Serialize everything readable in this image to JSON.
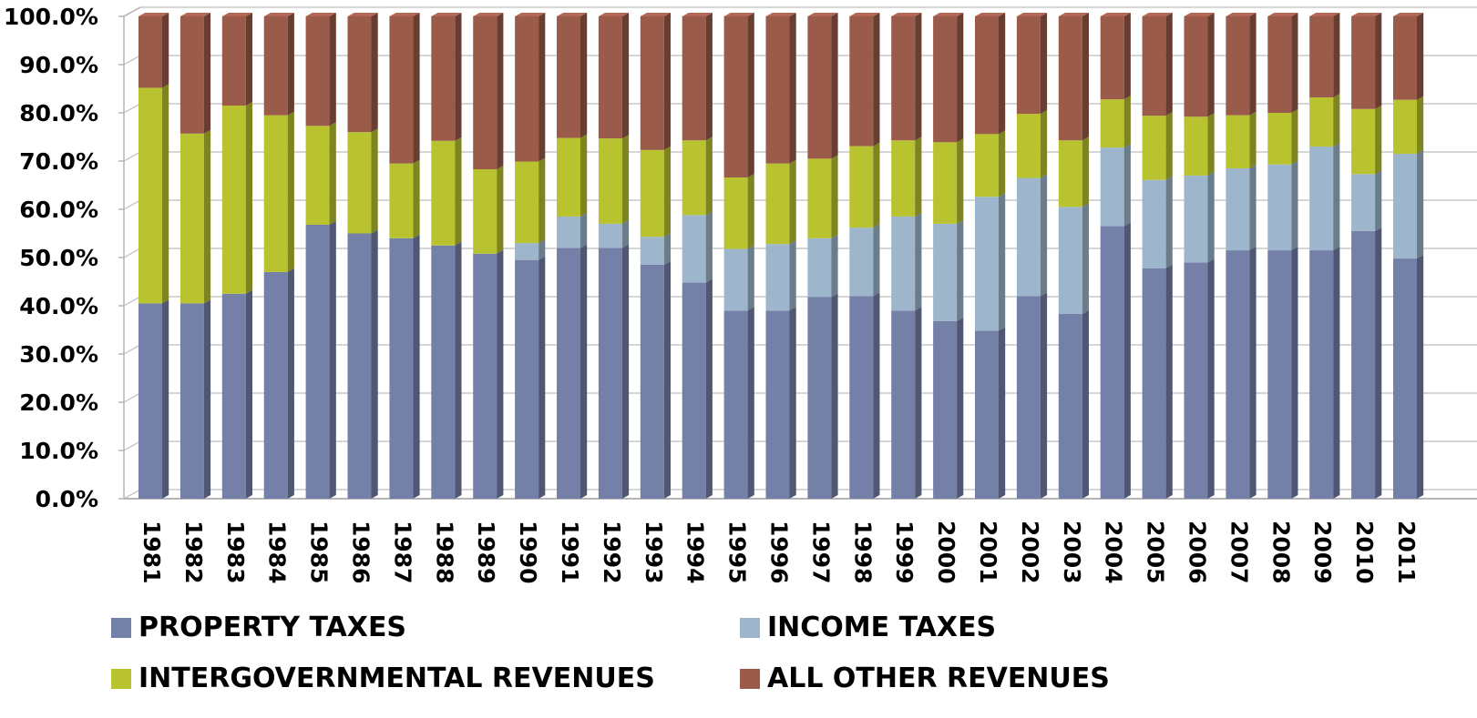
{
  "chart_data": {
    "type": "bar",
    "stacked": true,
    "percent": true,
    "three_d": true,
    "categories": [
      "1981",
      "1982",
      "1983",
      "1984",
      "1985",
      "1986",
      "1987",
      "1988",
      "1989",
      "1990",
      "1991",
      "1992",
      "1993",
      "1994",
      "1995",
      "1996",
      "1997",
      "1998",
      "1999",
      "2000",
      "2001",
      "2002",
      "2003",
      "2004",
      "2005",
      "2006",
      "2007",
      "2008",
      "2009",
      "2010",
      "2011"
    ],
    "series": [
      {
        "name": "PROPERTY TAXES",
        "color": "#7580A8",
        "values": [
          40.5,
          40.5,
          42.5,
          47,
          56.8,
          55,
          54,
          52.5,
          50.8,
          49.5,
          52,
          52,
          48.5,
          44.8,
          39,
          39,
          41.8,
          42,
          39,
          36.8,
          34.8,
          42,
          38.3,
          56.5,
          47.8,
          49,
          51.5,
          51.5,
          51.5,
          55.5,
          49.8
        ]
      },
      {
        "name": "INCOME TAXES",
        "color": "#9DB6CC",
        "values": [
          0,
          0,
          0,
          0,
          0,
          0,
          0,
          0,
          0,
          3.5,
          6.5,
          5,
          5.8,
          14,
          12.8,
          13.8,
          12.2,
          14.2,
          19.5,
          20.2,
          27.8,
          24.5,
          22.2,
          16.3,
          18.3,
          18,
          17,
          17.8,
          21.5,
          11.8,
          21.7
        ]
      },
      {
        "name": "INTERGOVERNMENTAL REVENUES",
        "color": "#B9C22F",
        "values": [
          44.7,
          35.2,
          39,
          32.5,
          20.5,
          21,
          15.5,
          21.7,
          17.5,
          16.9,
          16.3,
          17.7,
          18,
          15.5,
          14.8,
          16.7,
          16.5,
          16.9,
          15.8,
          16.9,
          13,
          13.3,
          13.8,
          10,
          13.3,
          12.2,
          11,
          10.7,
          10.2,
          13.5,
          11.2
        ]
      },
      {
        "name": "ALL OTHER REVENUES",
        "color": "#9A5B4A",
        "values": [
          14.8,
          24.3,
          18.5,
          20.5,
          22.7,
          24,
          30.5,
          25.8,
          31.7,
          30.1,
          25.2,
          25.3,
          27.7,
          25.7,
          33.4,
          30.5,
          29.5,
          26.9,
          25.7,
          26.1,
          24.4,
          20.2,
          25.7,
          17.2,
          20.6,
          20.8,
          20.5,
          20,
          16.8,
          19.2,
          17.3
        ]
      }
    ],
    "ylim": [
      0,
      100
    ],
    "yticks": [
      "0.0%",
      "10.0%",
      "20.0%",
      "30.0%",
      "40.0%",
      "50.0%",
      "60.0%",
      "70.0%",
      "80.0%",
      "90.0%",
      "100.0%"
    ],
    "grid": true,
    "legend_position": "bottom"
  }
}
